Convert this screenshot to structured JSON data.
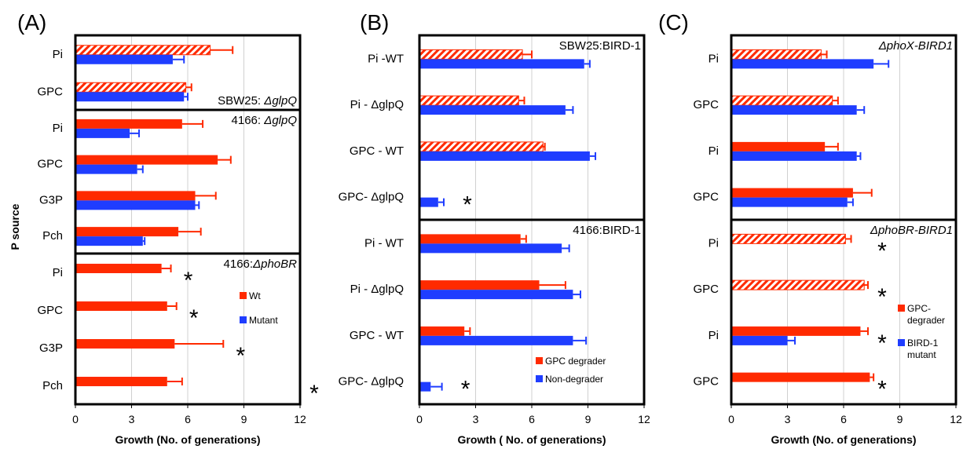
{
  "colors": {
    "red": "#ff2a00",
    "blue": "#1f3dff",
    "grid": "#d0d0d0"
  },
  "ylabel": "P source",
  "chart_data": [
    {
      "type": "bar",
      "panel_label": "(A)",
      "xlabel": "Growth (No. of generations)",
      "xlim": [
        0,
        12
      ],
      "xticks": [
        "0",
        "3",
        "6",
        "9",
        "12"
      ],
      "legend": [
        {
          "label": "Wt",
          "color": "red"
        },
        {
          "label": "Mutant",
          "color": "blue"
        }
      ],
      "subpanels": [
        {
          "title_plain": "SBW25: ",
          "title_italic": "ΔglpQ",
          "rows": [
            {
              "label": "Pi",
              "red": 7.2,
              "red_err": 1.2,
              "red_hatched": true,
              "blue": 5.2,
              "blue_err": 0.6,
              "star": false
            },
            {
              "label": "GPC",
              "red": 5.9,
              "red_err": 0.3,
              "red_hatched": true,
              "blue": 5.8,
              "blue_err": 0.2,
              "star": false
            }
          ]
        },
        {
          "title_plain": "4166: ",
          "title_italic": "ΔglpQ",
          "rows": [
            {
              "label": "Pi",
              "red": 5.7,
              "red_err": 1.1,
              "red_hatched": false,
              "blue": 2.9,
              "blue_err": 0.5,
              "star": false
            },
            {
              "label": "GPC",
              "red": 7.6,
              "red_err": 0.7,
              "red_hatched": false,
              "blue": 3.3,
              "blue_err": 0.3,
              "star": false
            },
            {
              "label": "G3P",
              "red": 6.4,
              "red_err": 1.1,
              "red_hatched": false,
              "blue": 6.4,
              "blue_err": 0.2,
              "star": false
            },
            {
              "label": "Pch",
              "red": 5.5,
              "red_err": 1.2,
              "red_hatched": false,
              "blue": 3.6,
              "blue_err": 0.1,
              "star": false
            }
          ]
        },
        {
          "title_plain": "4166:",
          "title_italic": "ΔphoBR",
          "rows": [
            {
              "label": "Pi",
              "red": 4.6,
              "red_err": 0.5,
              "red_hatched": false,
              "blue": 0,
              "blue_err": 0,
              "star": true
            },
            {
              "label": "GPC",
              "red": 4.9,
              "red_err": 0.5,
              "red_hatched": false,
              "blue": 0,
              "blue_err": 0,
              "star": true
            },
            {
              "label": "G3P",
              "red": 5.3,
              "red_err": 2.6,
              "red_hatched": false,
              "blue": 0,
              "blue_err": 0,
              "star": true
            },
            {
              "label": "Pch",
              "red": 4.9,
              "red_err": 0.8,
              "red_hatched": false,
              "blue": 0,
              "blue_err": 0,
              "star": true
            }
          ]
        }
      ]
    },
    {
      "type": "bar",
      "panel_label": "(B)",
      "xlabel": "Growth ( No. of generations)",
      "xlim": [
        0,
        12
      ],
      "xticks": [
        "0",
        "3",
        "6",
        "9",
        "12"
      ],
      "legend": [
        {
          "label": "GPC degrader",
          "color": "red"
        },
        {
          "label": "Non-degrader",
          "color": "blue"
        }
      ],
      "subpanels": [
        {
          "title_plain": "SBW25:BIRD-1",
          "title_italic": "",
          "rows": [
            {
              "label": "Pi -WT",
              "red": 5.5,
              "red_err": 0.5,
              "red_hatched": true,
              "blue": 8.8,
              "blue_err": 0.3,
              "star": false
            },
            {
              "label": "Pi - ΔglpQ",
              "red": 5.3,
              "red_err": 0.3,
              "red_hatched": true,
              "blue": 7.8,
              "blue_err": 0.4,
              "star": false
            },
            {
              "label": "GPC - WT",
              "red": 6.6,
              "red_err": 0.1,
              "red_hatched": true,
              "blue": 9.1,
              "blue_err": 0.3,
              "star": false
            },
            {
              "label": "GPC- ΔglpQ",
              "red": 0,
              "red_err": 0,
              "red_hatched": false,
              "blue": 1.0,
              "blue_err": 0.3,
              "star": true
            }
          ]
        },
        {
          "title_plain": "4166:BIRD-1",
          "title_italic": "",
          "rows": [
            {
              "label": "Pi - WT",
              "red": 5.4,
              "red_err": 0.3,
              "red_hatched": false,
              "blue": 7.6,
              "blue_err": 0.4,
              "star": false
            },
            {
              "label": "Pi - ΔglpQ",
              "red": 6.4,
              "red_err": 1.4,
              "red_hatched": false,
              "blue": 8.2,
              "blue_err": 0.4,
              "star": false
            },
            {
              "label": "GPC - WT",
              "red": 2.4,
              "red_err": 0.3,
              "red_hatched": false,
              "blue": 8.2,
              "blue_err": 0.7,
              "star": false
            },
            {
              "label": "GPC- ΔglpQ",
              "red": 0,
              "red_err": 0,
              "red_hatched": false,
              "blue": 0.6,
              "blue_err": 0.6,
              "star": true
            }
          ]
        }
      ]
    },
    {
      "type": "bar",
      "panel_label": "(C)",
      "xlabel": "Growth (No. of generations)",
      "xlim": [
        0,
        12
      ],
      "xticks": [
        "0",
        "3",
        "6",
        "9",
        "12"
      ],
      "legend": [
        {
          "label": "GPC-\ndegrader",
          "color": "red"
        },
        {
          "label": "BIRD-1\nmutant",
          "color": "blue"
        }
      ],
      "subpanels": [
        {
          "title_plain": "",
          "title_italic": "ΔphoX-BIRD1",
          "rows": [
            {
              "label": "Pi",
              "red": 4.8,
              "red_err": 0.3,
              "red_hatched": true,
              "blue": 7.6,
              "blue_err": 0.8,
              "star": false
            },
            {
              "label": "GPC",
              "red": 5.4,
              "red_err": 0.3,
              "red_hatched": true,
              "blue": 6.7,
              "blue_err": 0.4,
              "star": false
            },
            {
              "label": "Pi",
              "red": 5.0,
              "red_err": 0.7,
              "red_hatched": false,
              "blue": 6.7,
              "blue_err": 0.2,
              "star": false
            },
            {
              "label": "GPC",
              "red": 6.5,
              "red_err": 1.0,
              "red_hatched": false,
              "blue": 6.2,
              "blue_err": 0.3,
              "star": false
            }
          ]
        },
        {
          "title_plain": "",
          "title_italic": "ΔphoBR-BIRD1",
          "rows": [
            {
              "label": "Pi",
              "red": 6.1,
              "red_err": 0.3,
              "red_hatched": true,
              "blue": 0,
              "blue_err": 0,
              "star": true
            },
            {
              "label": "GPC",
              "red": 7.1,
              "red_err": 0.2,
              "red_hatched": true,
              "blue": 0,
              "blue_err": 0,
              "star": true
            },
            {
              "label": "Pi",
              "red": 6.9,
              "red_err": 0.4,
              "red_hatched": false,
              "blue": 3.0,
              "blue_err": 0.4,
              "star": true
            },
            {
              "label": "GPC",
              "red": 7.4,
              "red_err": 0.2,
              "red_hatched": false,
              "blue": 0,
              "blue_err": 0,
              "star": true
            }
          ]
        }
      ]
    }
  ]
}
